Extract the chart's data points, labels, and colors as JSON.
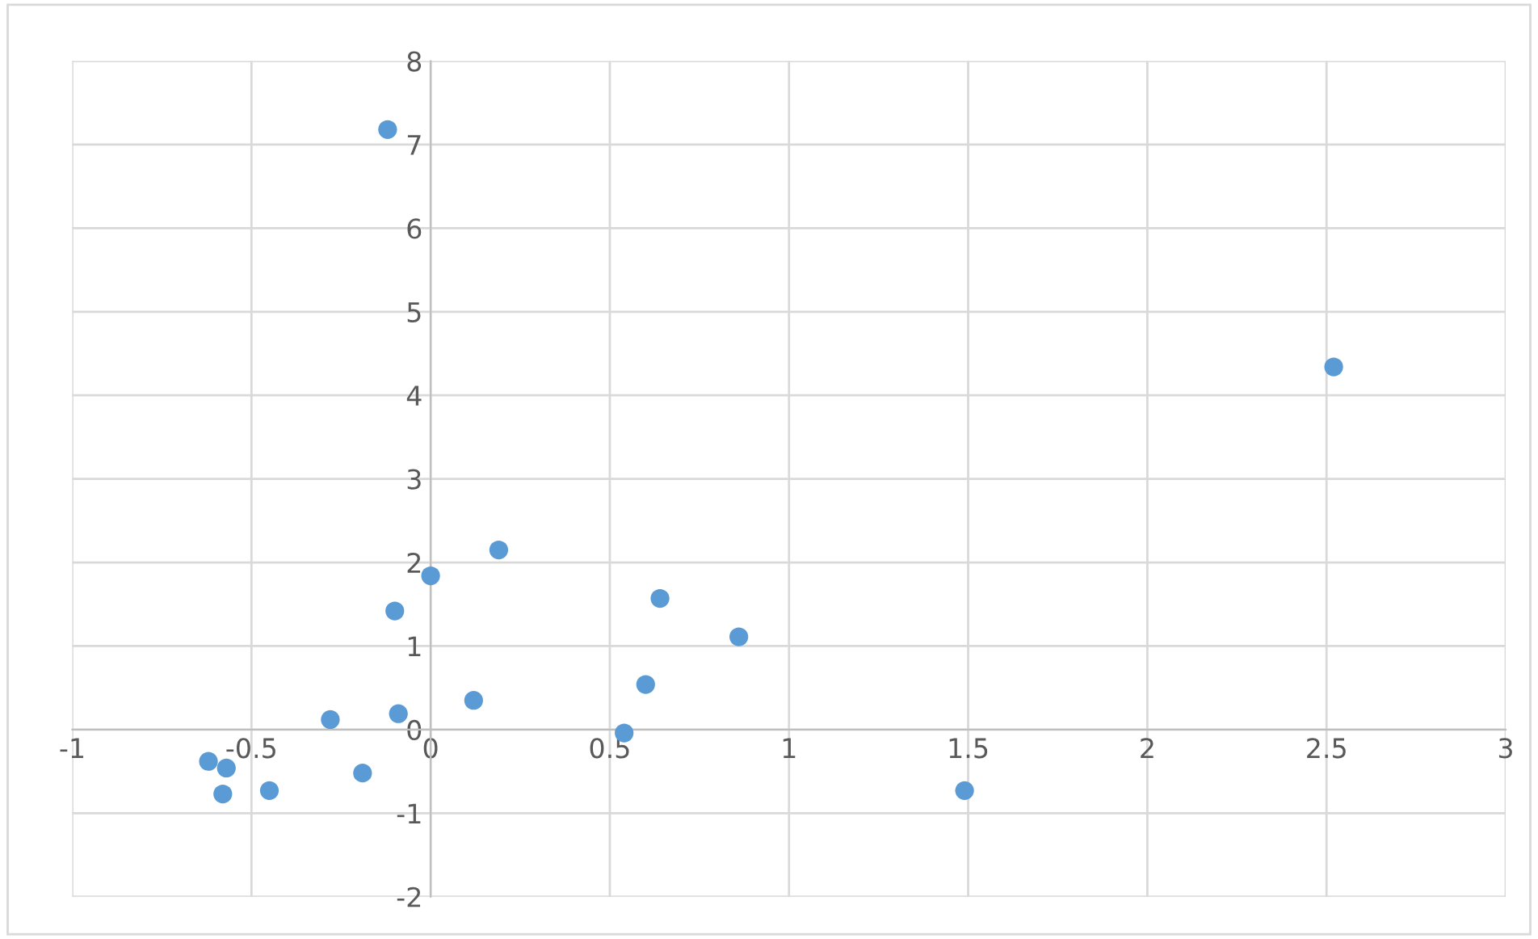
{
  "chart_data": {
    "type": "scatter",
    "x": [
      -0.12,
      2.52,
      0.19,
      0.0,
      0.64,
      -0.1,
      0.86,
      0.12,
      0.6,
      -0.28,
      -0.09,
      0.54,
      -0.62,
      -0.57,
      -0.19,
      -0.58,
      -0.45,
      1.49
    ],
    "series": [
      {
        "color": "#5b9bd5",
        "values": [
          7.18,
          4.34,
          2.15,
          1.84,
          1.57,
          1.42,
          1.11,
          0.35,
          0.54,
          0.12,
          0.19,
          -0.04,
          -0.38,
          -0.46,
          -0.52,
          -0.77,
          -0.73,
          -0.73
        ]
      }
    ],
    "marker": "circle",
    "xlim": [
      -1,
      3
    ],
    "xticks": [
      -1,
      -0.5,
      0,
      0.5,
      1,
      1.5,
      2,
      2.5,
      3
    ],
    "ylim": [
      -2,
      8
    ],
    "yticks": [
      -2,
      -1,
      0,
      1,
      2,
      3,
      4,
      5,
      6,
      7,
      8
    ],
    "grid": true
  }
}
